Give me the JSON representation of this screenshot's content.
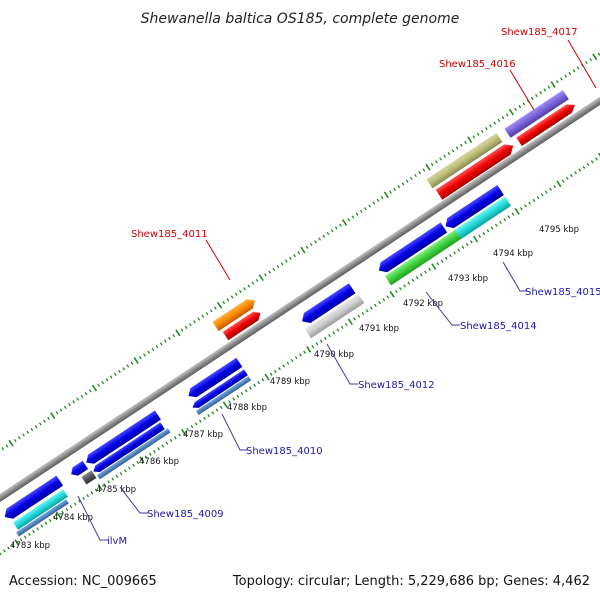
{
  "title": "Shewanella baltica OS185, complete genome",
  "footer": {
    "accession": "Accession: NC_009665",
    "summary": "Topology: circular; Length: 5,229,686 bp; Genes: 4,462"
  },
  "colors": {
    "backbone": "#9a9a9a",
    "tick": "#1f8a1f",
    "label_forward": "#cc0000",
    "label_reverse": "#1a1aa8",
    "leader": "#3a3aa8",
    "leader_forward": "#cc0000"
  },
  "ruler": {
    "unit": "kbp",
    "ticks": [
      "4783 kbp",
      "4784 kbp",
      "4785 kbp",
      "4786 kbp",
      "4787 kbp",
      "4788 kbp",
      "4789 kbp",
      "4790 kbp",
      "4791 kbp",
      "4792 kbp",
      "4793 kbp",
      "4794 kbp",
      "4795 kbp"
    ]
  },
  "gene_labels": [
    {
      "name": "Shew185_4017",
      "strand": "forward"
    },
    {
      "name": "Shew185_4016",
      "strand": "forward"
    },
    {
      "name": "Shew185_4011",
      "strand": "forward"
    },
    {
      "name": "Shew185_4015",
      "strand": "reverse"
    },
    {
      "name": "Shew185_4014",
      "strand": "reverse"
    },
    {
      "name": "Shew185_4012",
      "strand": "reverse"
    },
    {
      "name": "Shew185_4010",
      "strand": "reverse"
    },
    {
      "name": "Shew185_4009",
      "strand": "reverse"
    },
    {
      "name": "ilvM",
      "strand": "reverse"
    }
  ]
}
